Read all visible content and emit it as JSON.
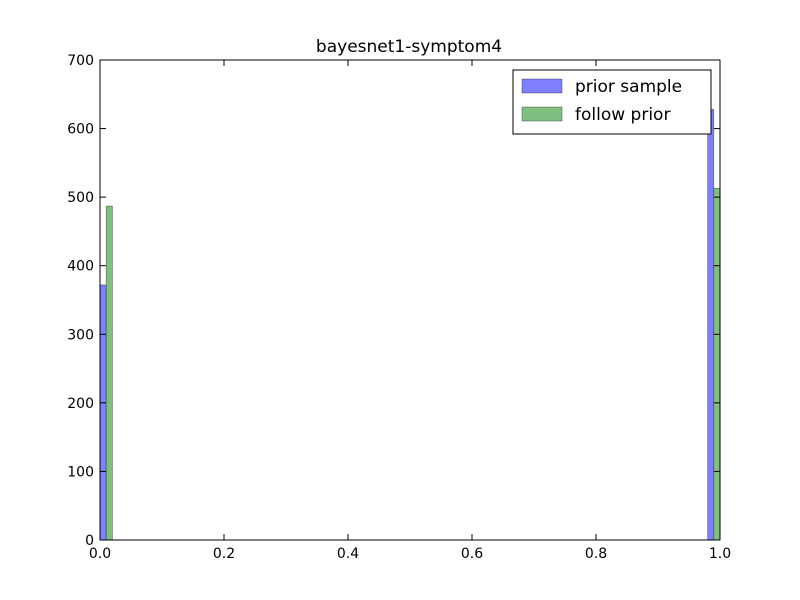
{
  "chart_data": {
    "type": "bar",
    "title": "bayesnet1-symptom4",
    "xlabel": "",
    "ylabel": "",
    "xlim": [
      0,
      1
    ],
    "ylim": [
      0,
      700
    ],
    "x_ticks": [
      "0.0",
      "0.2",
      "0.4",
      "0.6",
      "0.8",
      "1.0"
    ],
    "y_ticks": [
      "0",
      "100",
      "200",
      "300",
      "400",
      "500",
      "600",
      "700"
    ],
    "grid": false,
    "legend_position": "top-right",
    "series": [
      {
        "name": "prior sample",
        "color": "#7f7fff",
        "bins": [
          {
            "x0": 0.0,
            "x1": 0.01,
            "value": 372
          },
          {
            "x0": 0.98,
            "x1": 0.99,
            "value": 628
          }
        ]
      },
      {
        "name": "follow prior",
        "color": "#7fbf7f",
        "bins": [
          {
            "x0": 0.01,
            "x1": 0.02,
            "value": 487
          },
          {
            "x0": 0.99,
            "x1": 1.0,
            "value": 513
          }
        ]
      }
    ]
  }
}
